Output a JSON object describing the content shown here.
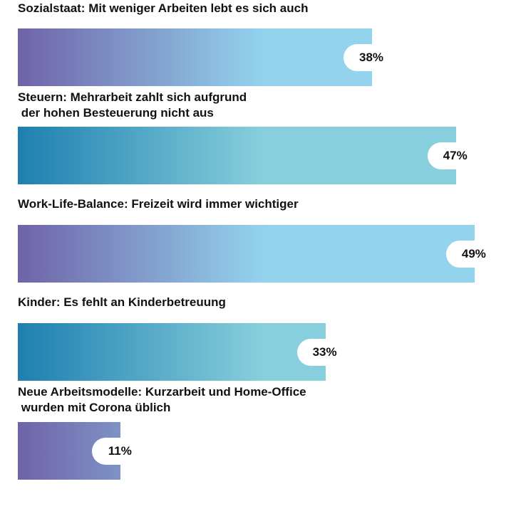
{
  "chart_data": {
    "type": "bar",
    "orientation": "horizontal",
    "categories": [
      "Sozialstaat: Mit weniger Arbeiten lebt es sich auch",
      "Steuern: Mehrarbeit zahlt sich aufgrund\n der hohen Besteuerung nicht aus",
      "Work-Life-Balance: Freizeit wird immer wichtiger",
      "Kinder: Es fehlt an Kinderbetreuung",
      "Neue Arbeitsmodelle: Kurzarbeit und Home-Office\n wurden mit Corona üblich"
    ],
    "values": [
      38,
      47,
      49,
      33,
      11
    ],
    "value_labels": [
      "38%",
      "47%",
      "49%",
      "33%",
      "11%"
    ],
    "colors": [
      [
        "#6f63a8",
        "#93d3ee"
      ],
      [
        "#1e7fb0",
        "#87cfdc"
      ],
      [
        "#6f63a8",
        "#93d3ee"
      ],
      [
        "#1e7fb0",
        "#87cfdc"
      ],
      [
        "#6f63a8",
        "#93d3ee"
      ]
    ]
  }
}
